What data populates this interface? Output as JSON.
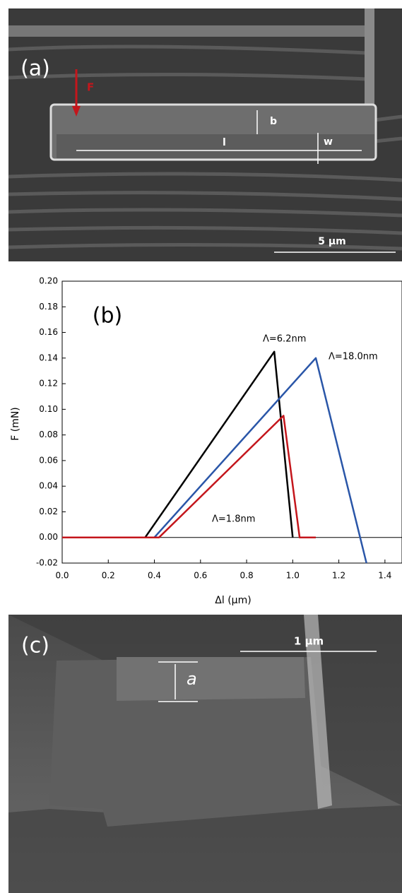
{
  "panel_a": {
    "label": "(a)",
    "force": "F",
    "b": "b",
    "l": "l",
    "w": "w",
    "scale": "5 µm"
  },
  "chart_data": {
    "type": "line",
    "label": "(b)",
    "x_label": "Δl (µm)",
    "y_label": "F (mN)",
    "xlim": [
      0,
      1.474
    ],
    "ylim": [
      -0.02,
      0.2
    ],
    "xticks": [
      {
        "value": 0,
        "label": "0.0"
      },
      {
        "value": 0.2,
        "label": "0.2"
      },
      {
        "value": 0.4,
        "label": "0.4"
      },
      {
        "value": 0.6,
        "label": "0.6"
      },
      {
        "value": 0.8,
        "label": "0.8"
      },
      {
        "value": 1.0,
        "label": "1.0"
      },
      {
        "value": 1.2,
        "label": "1.2"
      },
      {
        "value": 1.4,
        "label": "1.4"
      }
    ],
    "yticks": [
      {
        "value": -0.02,
        "label": "-0.02"
      },
      {
        "value": 0,
        "label": "0.00"
      },
      {
        "value": 0.02,
        "label": "0.02"
      },
      {
        "value": 0.04,
        "label": "0.04"
      },
      {
        "value": 0.06,
        "label": "0.06"
      },
      {
        "value": 0.08,
        "label": "0.08"
      },
      {
        "value": 0.1,
        "label": "0.10"
      },
      {
        "value": 0.12,
        "label": "0.12"
      },
      {
        "value": 0.14,
        "label": "0.14"
      },
      {
        "value": 0.16,
        "label": "0.16"
      },
      {
        "value": 0.18,
        "label": "0.18"
      },
      {
        "value": 0.2,
        "label": "0.20"
      }
    ],
    "reference_line": 0,
    "series": [
      {
        "name": "Λ=6.2nm",
        "color": "#000000",
        "x": [
          0,
          0.36,
          0.92,
          1.0
        ],
        "values": [
          0,
          0,
          0.145,
          0
        ]
      },
      {
        "name": "Λ=18.0nm",
        "color": "#2a56a8",
        "x": [
          0,
          0.4,
          1.1,
          1.32
        ],
        "values": [
          0,
          0,
          0.14,
          -0.02
        ]
      },
      {
        "name": "Λ=1.8nm",
        "color": "#c4161c",
        "x": [
          0,
          0.42,
          0.96,
          1.03,
          1.1
        ],
        "values": [
          0,
          0,
          0.095,
          0,
          0
        ]
      }
    ]
  },
  "panel_c": {
    "label": "(c)",
    "a": "a",
    "scale": "1 µm"
  }
}
